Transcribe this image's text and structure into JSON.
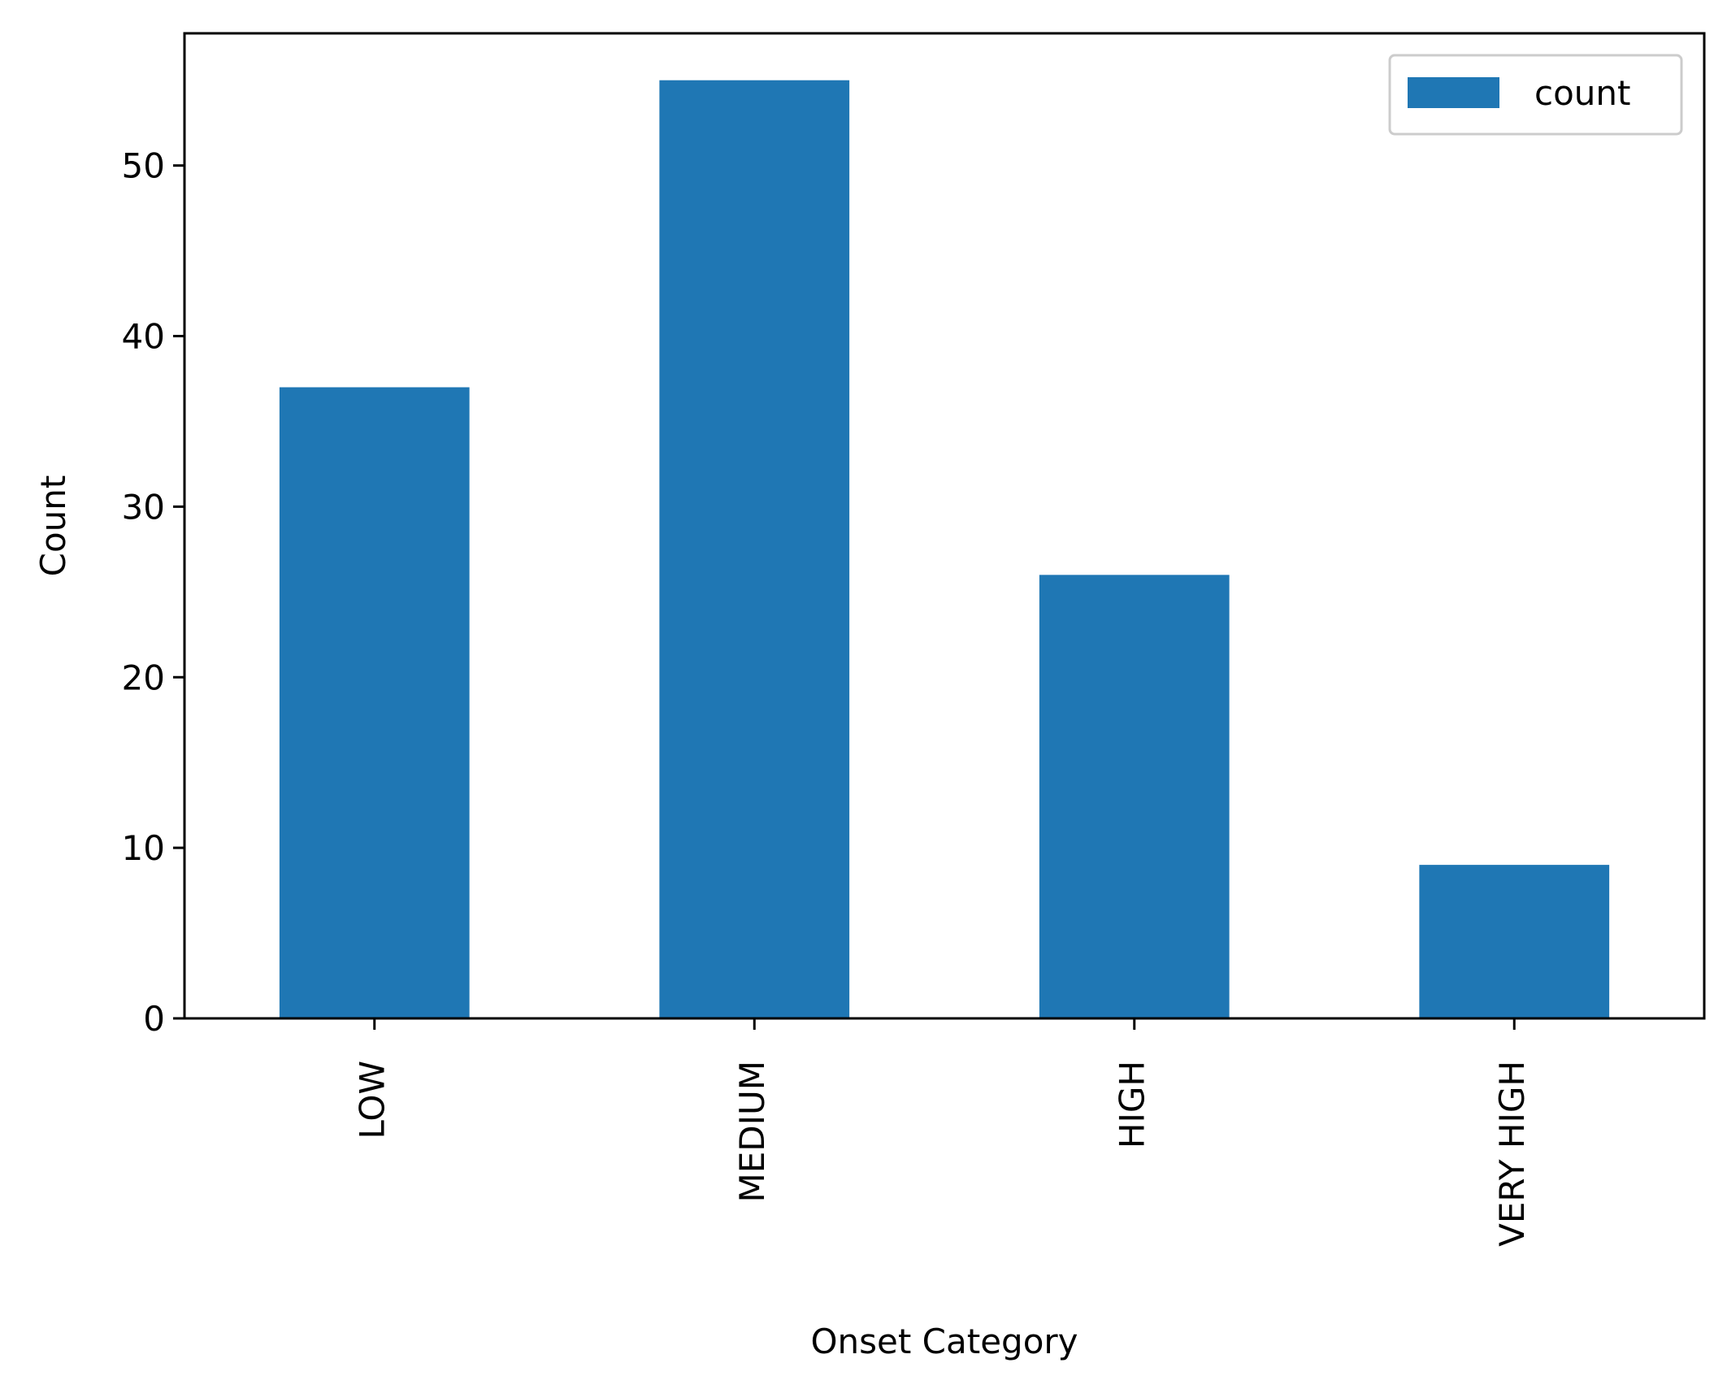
{
  "chart_data": {
    "type": "bar",
    "categories": [
      "LOW",
      "MEDIUM",
      "HIGH",
      "VERY HIGH"
    ],
    "series": [
      {
        "name": "count",
        "values": [
          37,
          55,
          26,
          9
        ],
        "color": "#1f77b4"
      }
    ],
    "xlabel": "Onset Category",
    "ylabel": "Count",
    "ylim": [
      0,
      57.75
    ],
    "yticks": [
      0,
      10,
      20,
      30,
      40,
      50
    ],
    "grid": false,
    "legend_position": "top-right"
  }
}
